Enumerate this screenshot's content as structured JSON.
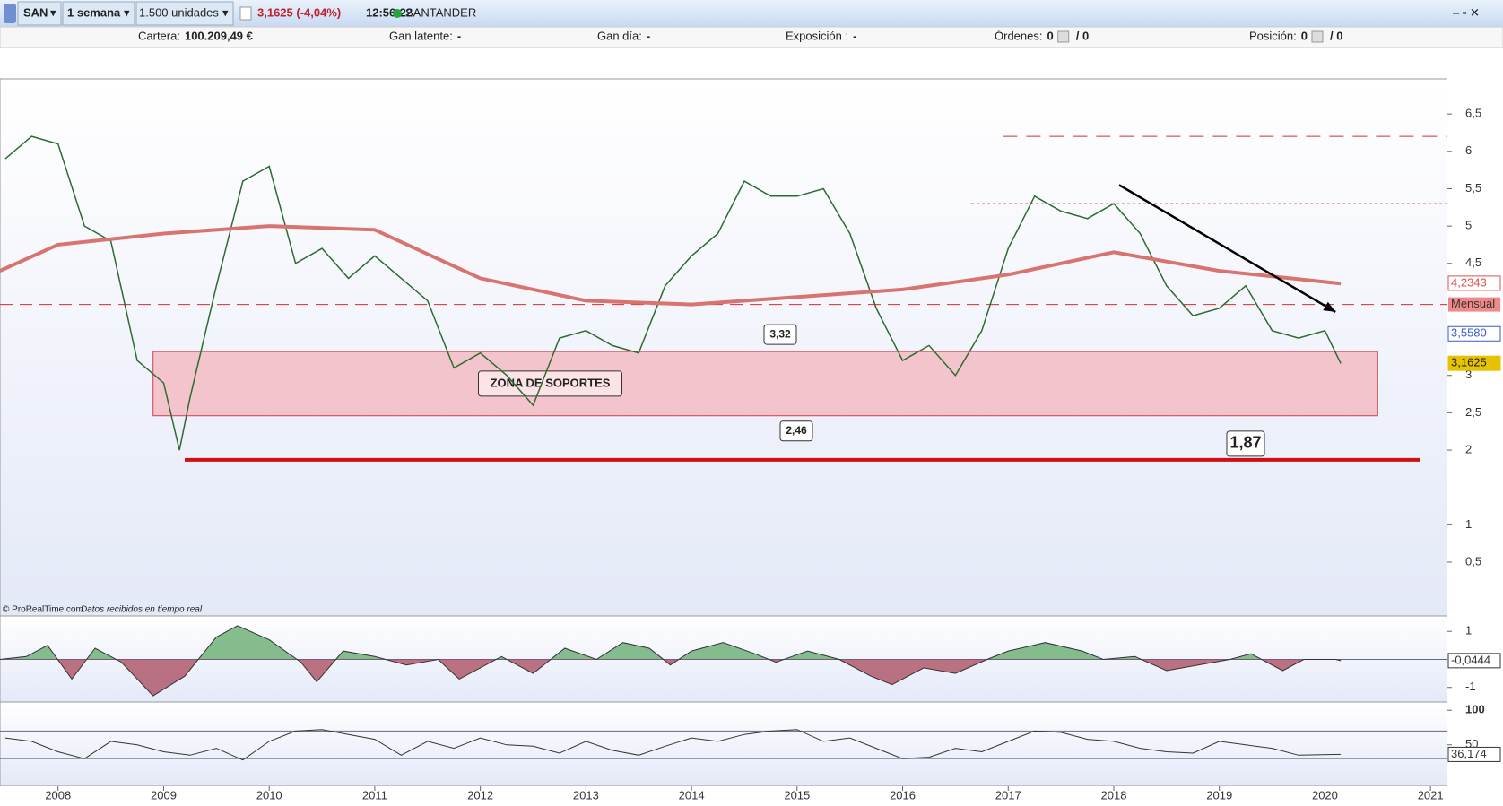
{
  "toolbar": {
    "symbol": "SAN",
    "period": "1 semana",
    "quantity": "1.500 unidades",
    "price": "3,1625 (-4,04%)",
    "time": "12:56:22",
    "name": "SANTANDER"
  },
  "account_bar": {
    "items": [
      {
        "label": "Cartera:",
        "value": "100.209,49 €"
      },
      {
        "label": "Gan latente:",
        "value": "-"
      },
      {
        "label": "Gan día:",
        "value": "-"
      },
      {
        "label": "Exposición :",
        "value": "-"
      },
      {
        "label": "Órdenes:",
        "value": "0",
        "extra": "/ 0"
      },
      {
        "label": "Posición:",
        "value": "0",
        "extra": "/ 0"
      }
    ]
  },
  "chart_data": [
    {
      "type": "line",
      "source": "© ProRealTime.com",
      "source_note": "Datos recibidos en tiempo real",
      "xlim": [
        2007.45,
        2021.16
      ],
      "xticks": [
        2008,
        2009,
        2010,
        2011,
        2012,
        2013,
        2014,
        2015,
        2016,
        2017,
        2018,
        2019,
        2020,
        2021
      ],
      "ylim": [
        -0.22,
        6.97
      ],
      "yticks": [
        {
          "value": 0.5,
          "label": "0,5"
        },
        1,
        2,
        {
          "value": 2.5,
          "label": "2,5"
        },
        3,
        {
          "value": 4.5,
          "label": "4,5"
        },
        5,
        {
          "value": 5.5,
          "label": "5,5"
        },
        6,
        {
          "value": 6.5,
          "label": "6,5"
        }
      ],
      "series": [
        {
          "color": "#2f6b2f",
          "x": [
            2007.5,
            2007.75,
            2008.0,
            2008.25,
            2008.5,
            2008.75,
            2009.0,
            2009.15,
            2009.25,
            2009.5,
            2009.75,
            2010.0,
            2010.25,
            2010.5,
            2010.75,
            2011.0,
            2011.25,
            2011.5,
            2011.75,
            2012.0,
            2012.25,
            2012.5,
            2012.75,
            2013.0,
            2013.25,
            2013.5,
            2013.75,
            2014.0,
            2014.25,
            2014.5,
            2014.75,
            2015.0,
            2015.25,
            2015.5,
            2015.75,
            2016.0,
            2016.25,
            2016.5,
            2016.75,
            2017.0,
            2017.25,
            2017.5,
            2017.75,
            2018.0,
            2018.25,
            2018.5,
            2018.75,
            2019.0,
            2019.25,
            2019.5,
            2019.75,
            2020.0,
            2020.15
          ],
          "values": [
            5.9,
            6.2,
            6.1,
            5.0,
            4.8,
            3.2,
            2.9,
            2.0,
            2.7,
            4.2,
            5.6,
            5.8,
            4.5,
            4.7,
            4.3,
            4.6,
            4.3,
            4.0,
            3.1,
            3.3,
            3.0,
            2.6,
            3.5,
            3.6,
            3.4,
            3.3,
            4.2,
            4.6,
            4.9,
            5.6,
            5.4,
            5.4,
            5.5,
            4.9,
            3.9,
            3.2,
            3.4,
            3.0,
            3.6,
            4.7,
            5.4,
            5.2,
            5.1,
            5.3,
            4.9,
            4.2,
            3.8,
            3.9,
            4.2,
            3.6,
            3.5,
            3.6,
            3.16
          ]
        },
        {
          "color": "#d9736f",
          "x": [
            2007.45,
            2008.0,
            2009.0,
            2010.0,
            2011.0,
            2012.0,
            2013.0,
            2014.0,
            2015.0,
            2016.0,
            2017.0,
            2018.0,
            2019.0,
            2020.15
          ],
          "values": [
            4.4,
            4.75,
            4.9,
            5.0,
            4.95,
            4.3,
            4.0,
            3.95,
            4.05,
            4.15,
            4.35,
            4.65,
            4.4,
            4.23
          ]
        }
      ],
      "zone": {
        "label": "ZONA DE SOPORTES",
        "x": [
          2008.9,
          2020.5
        ],
        "top": {
          "value": 3.32,
          "label": "3,32"
        },
        "bottom": {
          "value": 2.46,
          "label": "2,46"
        }
      },
      "support_line": {
        "x": [
          2009.2,
          2020.9
        ],
        "value": 1.87,
        "label": "1,87"
      },
      "monthly_line": {
        "value": 3.95,
        "label": "Mensual"
      },
      "dashed_top": {
        "x": [
          2016.95,
          2021.16
        ],
        "value": 6.2
      },
      "dotted_line": {
        "x": [
          2016.65,
          2021.16
        ],
        "value": 5.3
      },
      "trend_arrow": {
        "x": [
          2018.05,
          2020.1
        ],
        "y": [
          5.55,
          3.85
        ]
      },
      "tags": [
        {
          "value": 4.2343,
          "label": "4,2343",
          "color": "#d9534f"
        },
        {
          "value": 3.558,
          "label": "3,5580",
          "color": "#3b5bc9"
        },
        {
          "value": 3.1625,
          "label": "3,1625",
          "color": "#e6c200"
        }
      ]
    },
    {
      "type": "area",
      "x": [
        2007.45,
        2007.7,
        2007.9,
        2008.13,
        2008.35,
        2008.6,
        2008.9,
        2009.2,
        2009.5,
        2009.7,
        2010.0,
        2010.3,
        2010.45,
        2010.7,
        2011.0,
        2011.3,
        2011.6,
        2011.8,
        2012.2,
        2012.5,
        2012.8,
        2013.1,
        2013.35,
        2013.6,
        2013.8,
        2014.0,
        2014.3,
        2014.6,
        2014.8,
        2015.1,
        2015.4,
        2015.7,
        2015.9,
        2016.2,
        2016.5,
        2016.8,
        2017.0,
        2017.35,
        2017.7,
        2017.9,
        2018.2,
        2018.5,
        2018.8,
        2019.1,
        2019.3,
        2019.6,
        2019.8,
        2020.1,
        2020.15
      ],
      "values": [
        0.0,
        0.1,
        0.5,
        -0.7,
        0.4,
        -0.1,
        -1.3,
        -0.6,
        0.8,
        1.2,
        0.7,
        -0.1,
        -0.8,
        0.3,
        0.1,
        -0.2,
        0.0,
        -0.7,
        0.1,
        -0.5,
        0.4,
        0.0,
        0.6,
        0.4,
        -0.2,
        0.3,
        0.6,
        0.2,
        -0.1,
        0.3,
        0.0,
        -0.6,
        -0.9,
        -0.3,
        -0.5,
        0.0,
        0.3,
        0.6,
        0.3,
        0.0,
        0.1,
        -0.4,
        -0.2,
        0.0,
        0.2,
        -0.4,
        0.0,
        0.0,
        -0.0444
      ],
      "ylim": [
        -1.52,
        1.55
      ],
      "yticks": [
        -1,
        1
      ],
      "tag": {
        "value": -0.0444,
        "label": "-0,0444"
      }
    },
    {
      "type": "line",
      "x": [
        2007.5,
        2007.75,
        2008.0,
        2008.25,
        2008.5,
        2008.75,
        2009.0,
        2009.25,
        2009.5,
        2009.75,
        2010.0,
        2010.25,
        2010.5,
        2010.75,
        2011.0,
        2011.25,
        2011.5,
        2011.75,
        2012.0,
        2012.25,
        2012.5,
        2012.75,
        2013.0,
        2013.25,
        2013.5,
        2013.75,
        2014.0,
        2014.25,
        2014.5,
        2014.75,
        2015.0,
        2015.25,
        2015.5,
        2015.75,
        2016.0,
        2016.25,
        2016.5,
        2016.75,
        2017.0,
        2017.25,
        2017.5,
        2017.75,
        2018.0,
        2018.25,
        2018.5,
        2018.75,
        2019.0,
        2019.25,
        2019.5,
        2019.75,
        2020.15
      ],
      "values": [
        60,
        55,
        40,
        30,
        55,
        50,
        40,
        35,
        45,
        28,
        55,
        70,
        72,
        65,
        58,
        35,
        55,
        45,
        60,
        50,
        48,
        38,
        55,
        42,
        35,
        48,
        60,
        55,
        65,
        70,
        72,
        55,
        60,
        45,
        30,
        32,
        45,
        40,
        55,
        70,
        68,
        58,
        55,
        45,
        40,
        38,
        55,
        50,
        45,
        35,
        36.174
      ],
      "color": "#333333",
      "ylim": [
        -10,
        112
      ],
      "yticks": [
        50,
        100
      ],
      "levels": [
        70,
        30
      ],
      "tag": {
        "value": 36.174,
        "label": "36,174"
      }
    }
  ]
}
